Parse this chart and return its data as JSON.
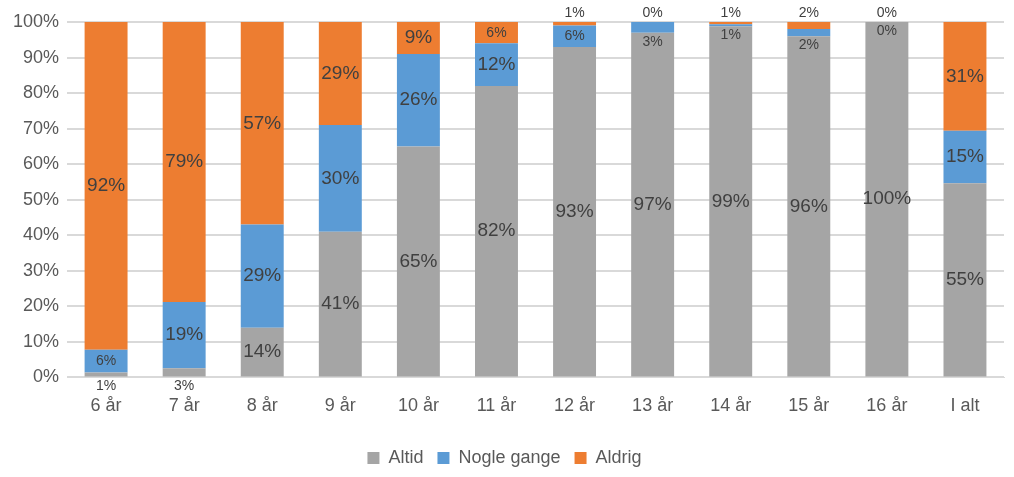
{
  "chart_data": {
    "type": "bar",
    "stacked": true,
    "categories": [
      "6 år",
      "7 år",
      "8 år",
      "9 år",
      "10 år",
      "11 år",
      "12 år",
      "13 år",
      "14 år",
      "15 år",
      "16 år",
      "I alt"
    ],
    "series": [
      {
        "name": "Altid",
        "color": "#a5a5a5",
        "values": [
          1.4,
          2.6,
          14,
          41,
          65,
          82,
          93,
          97,
          98.8,
          96,
          100,
          54.6
        ],
        "value_labels": [
          "1%",
          "3%",
          "14%",
          "41%",
          "65%",
          "82%",
          "93%",
          "97%",
          "99%",
          "96%",
          "100%",
          "55%"
        ]
      },
      {
        "name": "Nogle gange",
        "color": "#5b9bd5",
        "values": [
          6.4,
          18.6,
          29,
          30,
          26,
          12,
          6,
          3,
          0.6,
          2,
          0,
          14.8
        ],
        "value_labels": [
          "6%",
          "19%",
          "29%",
          "30%",
          "26%",
          "12%",
          "6%",
          "3%",
          "1%",
          "2%",
          "0%",
          "15%"
        ]
      },
      {
        "name": "Aldrig",
        "color": "#ed7d31",
        "values": [
          92.2,
          78.8,
          57,
          29,
          9,
          6,
          1,
          0,
          0.6,
          2,
          0,
          30.6
        ],
        "value_labels": [
          "92%",
          "79%",
          "57%",
          "29%",
          "9%",
          "6%",
          "1%",
          "0%",
          "1%",
          "2%",
          "0%",
          "31%"
        ]
      }
    ],
    "ylim": [
      0,
      100
    ],
    "yticks": [
      {
        "value": 0,
        "label": "0%"
      },
      {
        "value": 10,
        "label": "10%"
      },
      {
        "value": 20,
        "label": "20%"
      },
      {
        "value": 30,
        "label": "30%"
      },
      {
        "value": 40,
        "label": "40%"
      },
      {
        "value": 50,
        "label": "50%"
      },
      {
        "value": 60,
        "label": "60%"
      },
      {
        "value": 70,
        "label": "70%"
      },
      {
        "value": 80,
        "label": "80%"
      },
      {
        "value": 90,
        "label": "90%"
      },
      {
        "value": 100,
        "label": "100%"
      }
    ],
    "grid": "y",
    "legend": "bottom"
  }
}
